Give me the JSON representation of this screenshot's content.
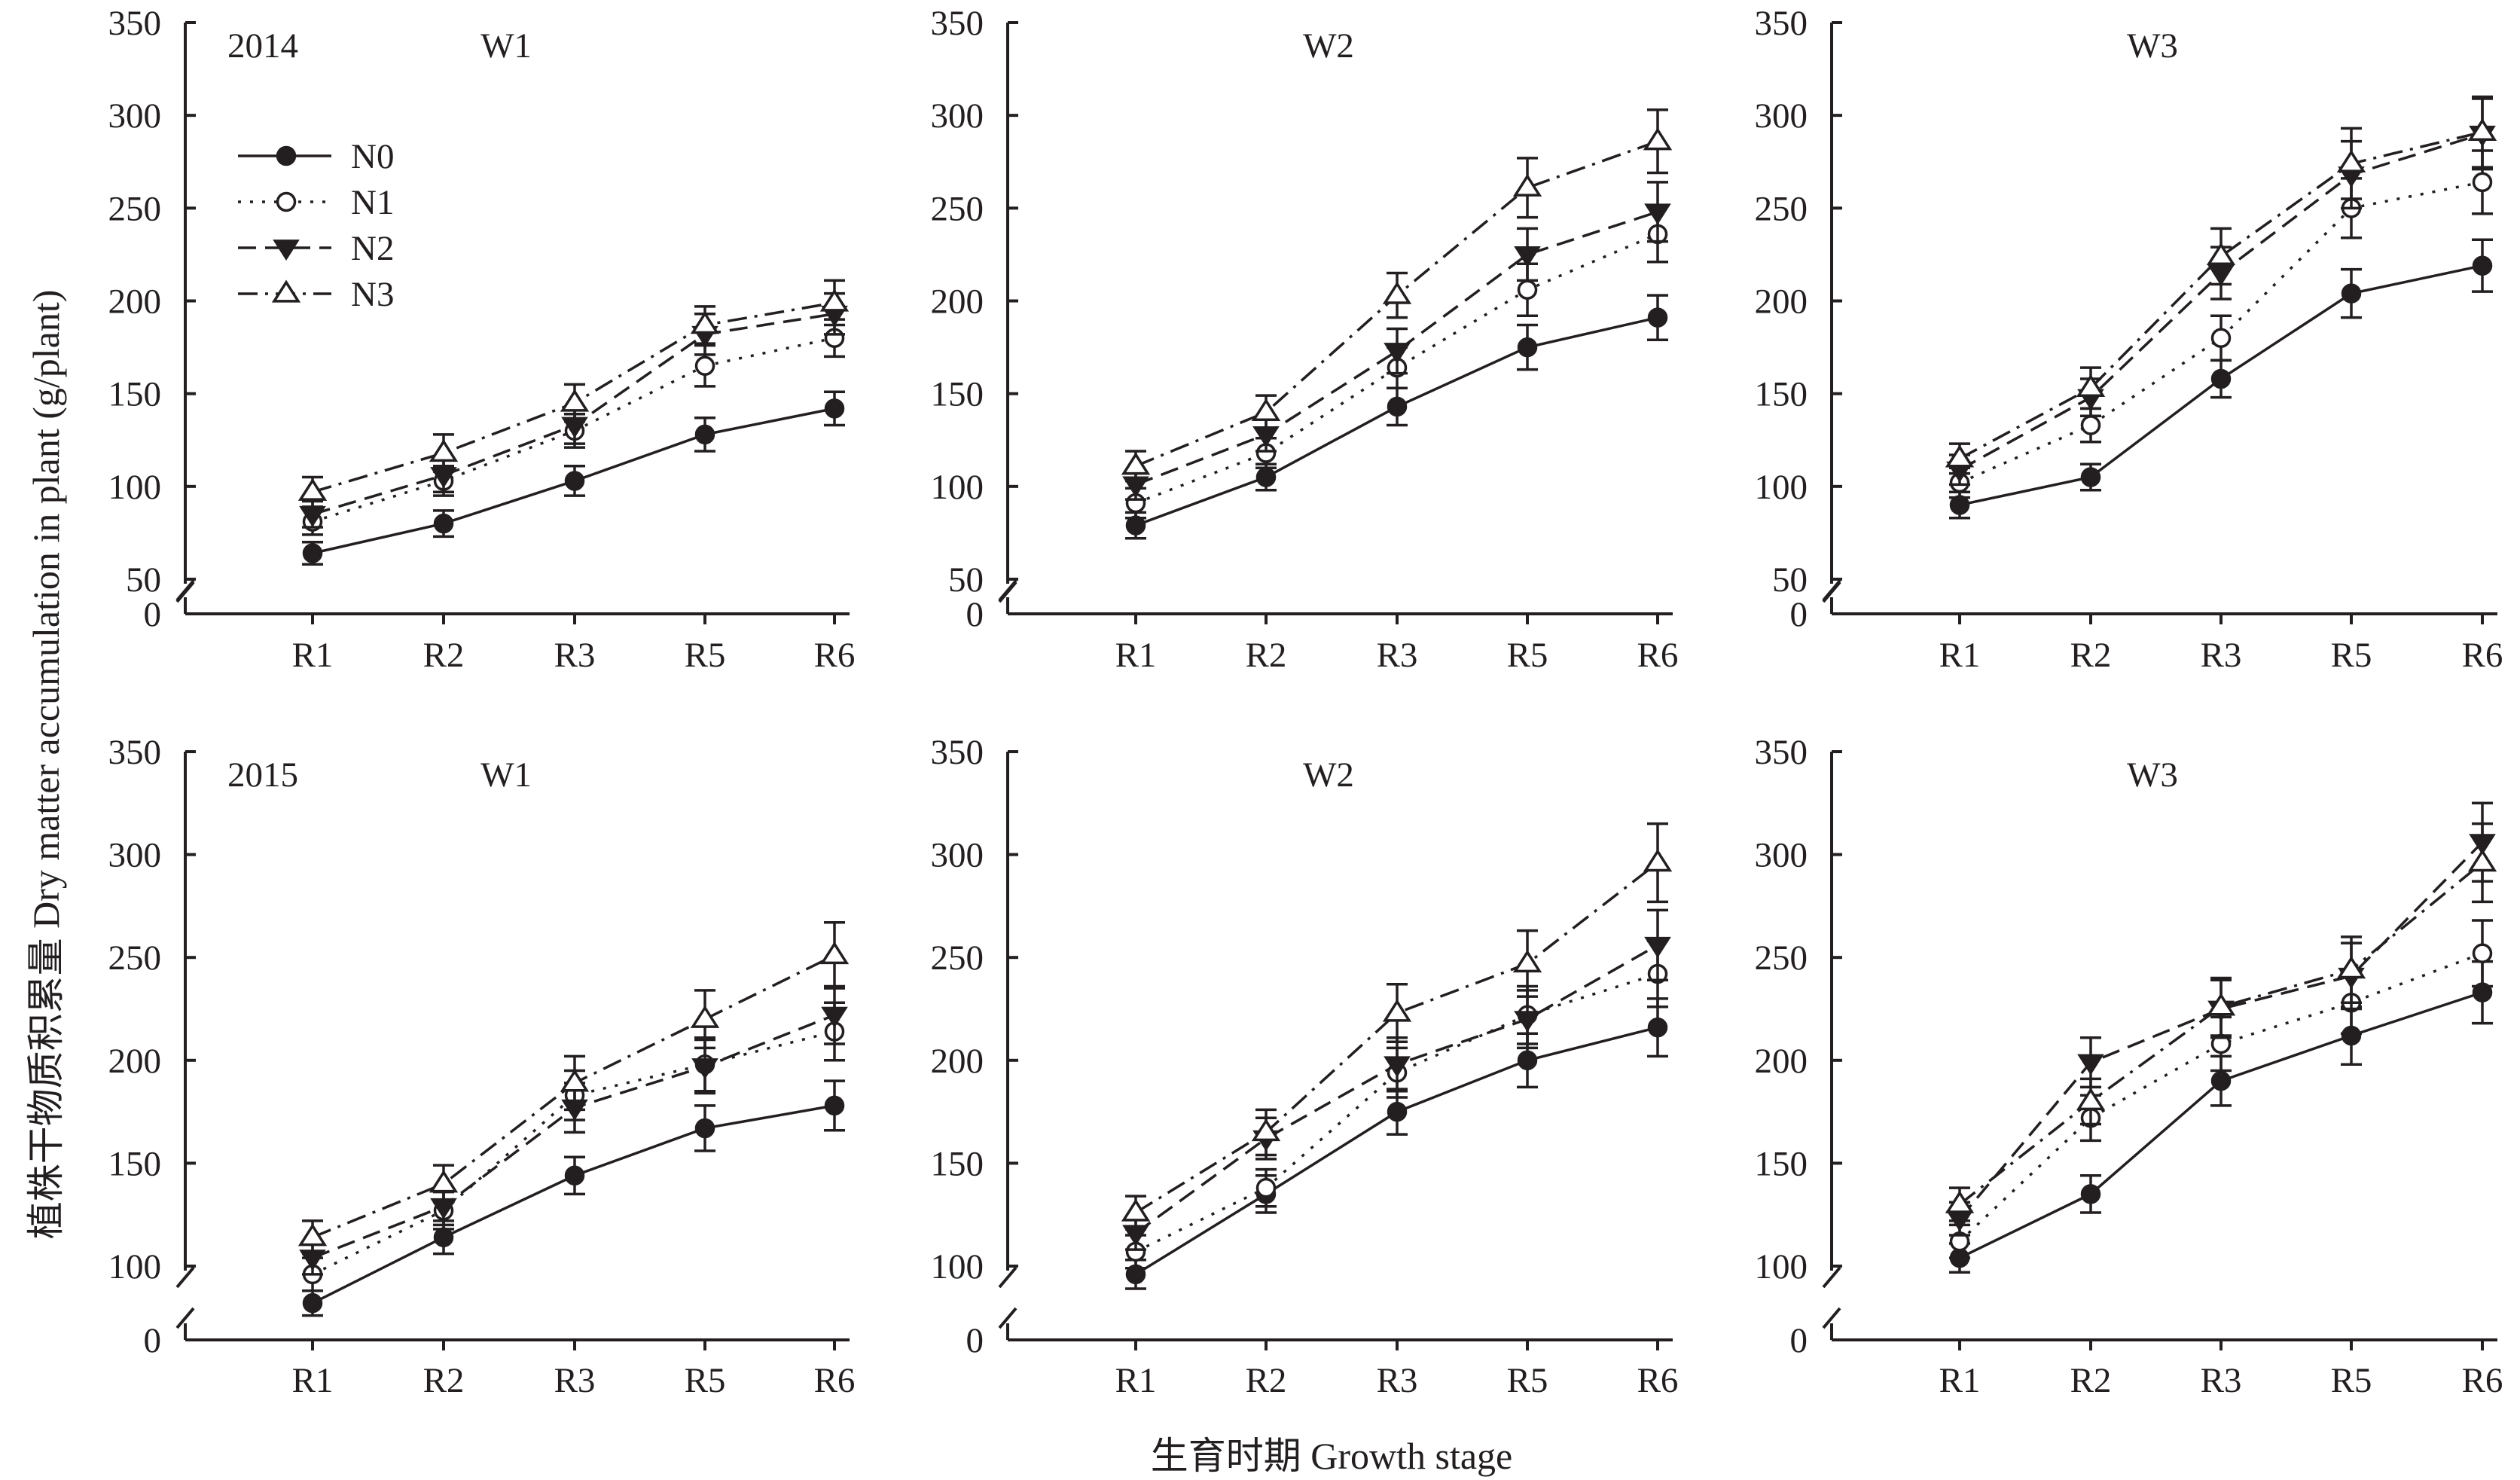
{
  "figure": {
    "ylabel": "植株干物质积累量 Dry matter accumulation in plant (g/plant)",
    "xlabel": "生育时期 Growth stage"
  },
  "legend": [
    {
      "name": "N0",
      "marker": "filled-circle",
      "line": "solid"
    },
    {
      "name": "N1",
      "marker": "open-circle",
      "line": "dotted"
    },
    {
      "name": "N2",
      "marker": "filled-triangle-down",
      "line": "dashed"
    },
    {
      "name": "N3",
      "marker": "open-triangle-up",
      "line": "dash-dot"
    }
  ],
  "colors": {
    "ink": "#231f20",
    "background": "#ffffff"
  },
  "chart_data": [
    {
      "type": "line",
      "year": "2014",
      "title": "W1",
      "categories": [
        "R1",
        "R2",
        "R3",
        "R5",
        "R6"
      ],
      "yticks": [
        "0",
        "50",
        "100",
        "150",
        "200",
        "250",
        "300",
        "350"
      ],
      "ylim": [
        50,
        350
      ],
      "axis_break": true,
      "series": [
        {
          "name": "N0",
          "values": [
            64,
            80,
            103,
            128,
            142
          ],
          "errors": [
            6,
            7,
            8,
            9,
            9
          ]
        },
        {
          "name": "N1",
          "values": [
            81,
            103,
            130,
            165,
            180
          ],
          "errors": [
            7,
            8,
            9,
            11,
            10
          ]
        },
        {
          "name": "N2",
          "values": [
            85,
            106,
            133,
            182,
            193
          ],
          "errors": [
            7,
            9,
            10,
            11,
            11
          ]
        },
        {
          "name": "N3",
          "values": [
            97,
            118,
            145,
            187,
            199
          ],
          "errors": [
            8,
            10,
            10,
            10,
            12
          ]
        }
      ]
    },
    {
      "type": "line",
      "year": "",
      "title": "W2",
      "categories": [
        "R1",
        "R2",
        "R3",
        "R5",
        "R6"
      ],
      "yticks": [
        "0",
        "50",
        "100",
        "150",
        "200",
        "250",
        "300",
        "350"
      ],
      "ylim": [
        50,
        350
      ],
      "axis_break": true,
      "series": [
        {
          "name": "N0",
          "values": [
            79,
            105,
            143,
            175,
            191
          ],
          "errors": [
            7,
            7,
            10,
            12,
            12
          ]
        },
        {
          "name": "N1",
          "values": [
            91,
            118,
            164,
            206,
            236
          ],
          "errors": [
            8,
            8,
            11,
            14,
            15
          ]
        },
        {
          "name": "N2",
          "values": [
            101,
            128,
            173,
            225,
            248
          ],
          "errors": [
            8,
            9,
            12,
            14,
            16
          ]
        },
        {
          "name": "N3",
          "values": [
            111,
            140,
            203,
            261,
            286
          ],
          "errors": [
            8,
            9,
            12,
            16,
            17
          ]
        }
      ]
    },
    {
      "type": "line",
      "year": "",
      "title": "W3",
      "categories": [
        "R1",
        "R2",
        "R3",
        "R5",
        "R6"
      ],
      "yticks": [
        "0",
        "50",
        "100",
        "150",
        "200",
        "250",
        "300",
        "350"
      ],
      "ylim": [
        50,
        350
      ],
      "axis_break": true,
      "series": [
        {
          "name": "N0",
          "values": [
            90,
            105,
            158,
            204,
            219
          ],
          "errors": [
            7,
            7,
            10,
            13,
            14
          ]
        },
        {
          "name": "N1",
          "values": [
            102,
            133,
            180,
            250,
            264
          ],
          "errors": [
            8,
            9,
            12,
            16,
            17
          ]
        },
        {
          "name": "N2",
          "values": [
            109,
            148,
            215,
            268,
            290
          ],
          "errors": [
            8,
            10,
            14,
            18,
            19
          ]
        },
        {
          "name": "N3",
          "values": [
            115,
            153,
            224,
            274,
            291
          ],
          "errors": [
            8,
            11,
            15,
            19,
            19
          ]
        }
      ]
    },
    {
      "type": "line",
      "year": "2015",
      "title": "W1",
      "categories": [
        "R1",
        "R2",
        "R3",
        "R5",
        "R6"
      ],
      "yticks": [
        "0",
        "100",
        "150",
        "200",
        "250",
        "300",
        "350"
      ],
      "ylim": [
        85,
        350
      ],
      "axis_break": true,
      "series": [
        {
          "name": "N0",
          "values": [
            82,
            114,
            144,
            167,
            178
          ],
          "errors": [
            6,
            8,
            9,
            11,
            12
          ]
        },
        {
          "name": "N1",
          "values": [
            96,
            127,
            183,
            198,
            214
          ],
          "errors": [
            8,
            9,
            12,
            13,
            14
          ]
        },
        {
          "name": "N2",
          "values": [
            104,
            129,
            177,
            197,
            222
          ],
          "errors": [
            8,
            9,
            12,
            13,
            14
          ]
        },
        {
          "name": "N3",
          "values": [
            114,
            140,
            189,
            220,
            251
          ],
          "errors": [
            8,
            9,
            13,
            14,
            16
          ]
        }
      ]
    },
    {
      "type": "line",
      "year": "",
      "title": "W2",
      "categories": [
        "R1",
        "R2",
        "R3",
        "R5",
        "R6"
      ],
      "yticks": [
        "0",
        "100",
        "150",
        "200",
        "250",
        "300",
        "350"
      ],
      "ylim": [
        85,
        350
      ],
      "axis_break": true,
      "series": [
        {
          "name": "N0",
          "values": [
            96,
            135,
            175,
            200,
            216
          ],
          "errors": [
            7,
            9,
            11,
            13,
            14
          ]
        },
        {
          "name": "N1",
          "values": [
            107,
            138,
            194,
            222,
            242
          ],
          "errors": [
            8,
            9,
            12,
            14,
            16
          ]
        },
        {
          "name": "N2",
          "values": [
            116,
            162,
            198,
            220,
            256
          ],
          "errors": [
            8,
            10,
            13,
            14,
            17
          ]
        },
        {
          "name": "N3",
          "values": [
            126,
            165,
            223,
            247,
            296
          ],
          "errors": [
            8,
            11,
            14,
            16,
            19
          ]
        }
      ]
    },
    {
      "type": "line",
      "year": "",
      "title": "W3",
      "categories": [
        "R1",
        "R2",
        "R3",
        "R5",
        "R6"
      ],
      "yticks": [
        "0",
        "100",
        "150",
        "200",
        "250",
        "300",
        "350"
      ],
      "ylim": [
        85,
        350
      ],
      "axis_break": true,
      "series": [
        {
          "name": "N0",
          "values": [
            104,
            135,
            190,
            212,
            233
          ],
          "errors": [
            7,
            9,
            12,
            14,
            15
          ]
        },
        {
          "name": "N1",
          "values": [
            112,
            172,
            208,
            228,
            252
          ],
          "errors": [
            8,
            11,
            13,
            15,
            16
          ]
        },
        {
          "name": "N2",
          "values": [
            123,
            199,
            225,
            241,
            306
          ],
          "errors": [
            8,
            12,
            14,
            16,
            19
          ]
        },
        {
          "name": "N3",
          "values": [
            130,
            180,
            226,
            244,
            296
          ],
          "errors": [
            8,
            11,
            14,
            16,
            19
          ]
        }
      ]
    }
  ]
}
